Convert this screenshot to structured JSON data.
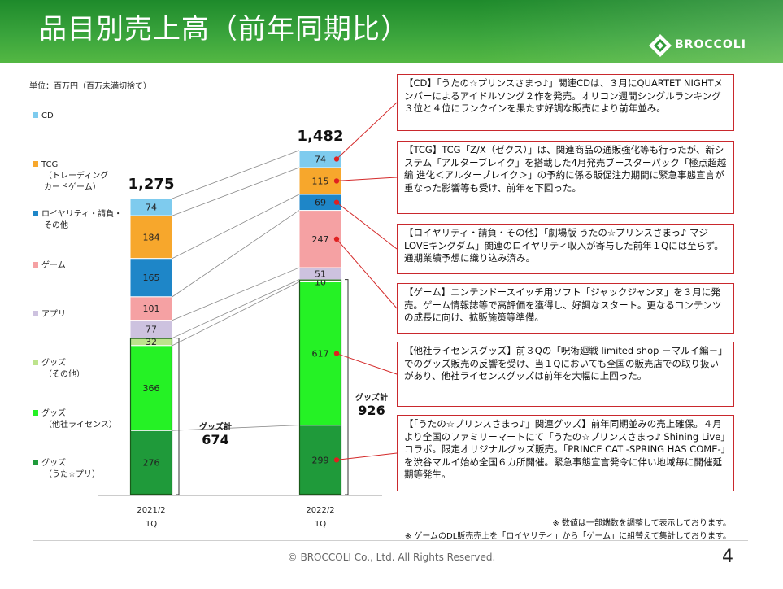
{
  "title": "品目別売上高（前年同期比）",
  "logo_text": "BROCCOLI",
  "unit": "単位：百万円（百万未満切捨て）",
  "legend": [
    {
      "label": "CD",
      "sub": "",
      "color": "#7ecbee"
    },
    {
      "label": "TCG",
      "sub": "（トレーディング\nカードゲーム）",
      "color": "#f7a72c"
    },
    {
      "label": "ロイヤリティ・請負・",
      "sub": "その他",
      "color": "#1e86c8"
    },
    {
      "label": "ゲーム",
      "sub": "",
      "color": "#f5a1a3"
    },
    {
      "label": "アプリ",
      "sub": "",
      "color": "#cdc2df"
    },
    {
      "label": "グッズ",
      "sub": "（その他）",
      "color": "#bde38c"
    },
    {
      "label": "グッズ",
      "sub": "（他社ライセンス）",
      "color": "#25f225"
    },
    {
      "label": "グッズ",
      "sub": "（うた☆プリ）",
      "color": "#1f9a3a"
    }
  ],
  "chart_data": {
    "type": "bar",
    "stacked": true,
    "categories": [
      "2021/2\n1Q",
      "2022/2\n1Q"
    ],
    "category_labels": [
      [
        "2021/2",
        "1Q"
      ],
      [
        "2022/2",
        "1Q"
      ]
    ],
    "totals": [
      "1,275",
      "1,482"
    ],
    "series": [
      {
        "name": "グッズ（うた☆プリ）",
        "color": "#1f9a3a",
        "values": [
          276,
          299
        ]
      },
      {
        "name": "グッズ（他社ライセンス）",
        "color": "#25f225",
        "values": [
          366,
          617
        ]
      },
      {
        "name": "グッズ（その他）",
        "color": "#bde38c",
        "values": [
          32,
          10
        ]
      },
      {
        "name": "アプリ",
        "color": "#cdc2df",
        "values": [
          77,
          51
        ]
      },
      {
        "name": "ゲーム",
        "color": "#f5a1a3",
        "values": [
          101,
          247
        ]
      },
      {
        "name": "ロイヤリティ・請負・その他",
        "color": "#1e86c8",
        "values": [
          165,
          69
        ]
      },
      {
        "name": "TCG",
        "color": "#f7a72c",
        "values": [
          184,
          115
        ]
      },
      {
        "name": "CD",
        "color": "#7ecbee",
        "values": [
          74,
          74
        ]
      }
    ],
    "goods_total_label": "グッズ計",
    "goods_totals": [
      "674",
      "926"
    ]
  },
  "notes": [
    "【CD】「うたの☆プリンスさまっ♪」関連CDは、３月にQUARTET NIGHTメンバーによるアイドルソング２作を発売。オリコン週間シングルランキング３位と４位にランクインを果たす好調な販売により前年並み。",
    "【TCG】TCG「Z/X（ゼクス）」は、関連商品の通販強化等も行ったが、新システム「アルターブレイク」を搭載した4月発売ブースターパック「極点超越編 進化＜アルターブレイク＞」の予約に係る販促注力期間に緊急事態宣言が重なった影響等も受け、前年を下回った。",
    "【ロイヤリティ・請負・その他】「劇場版 うたの☆プリンスさまっ♪ マジLOVEキングダム」関連のロイヤリティ収入が寄与した前年１Qには至らず。通期業績予想に織り込み済み。",
    "【ゲーム】ニンテンドースイッチ用ソフト「ジャックジャンヌ」を３月に発売。ゲーム情報誌等で高評価を獲得し、好調なスタート。更なるコンテンツの成長に向け、拡販施策等準備。",
    "【他社ライセンスグッズ】前３Qの「呪術廻戦 limited shop －マルイ編－」でのグッズ販売の反響を受け、当１Qにおいても全国の販売店での取り扱いがあり、他社ライセンスグッズは前年を大幅に上回った。",
    "【「うたの☆プリンスさまっ♪」関連グッズ】前年同期並みの売上確保。４月より全国のファミリーマートにて「うたの☆プリンスさまっ♪ Shining Live」コラボ。限定オリジナルグッズ販売。「PRINCE CAT -SPRING HAS COME-」を渋谷マルイ始め全国６カ所開催。緊急事態宣言発令に伴い地域毎に開催延期等発生。"
  ],
  "footnotes": [
    "※ 数値は一部端数を調整して表示しております。",
    "※ ゲームのDL販売売上を「ロイヤリティ」から「ゲーム」に組替えて集計しております。"
  ],
  "copyright": "© BROCCOLI Co., Ltd. All Rights Reserved.",
  "page_number": "4"
}
